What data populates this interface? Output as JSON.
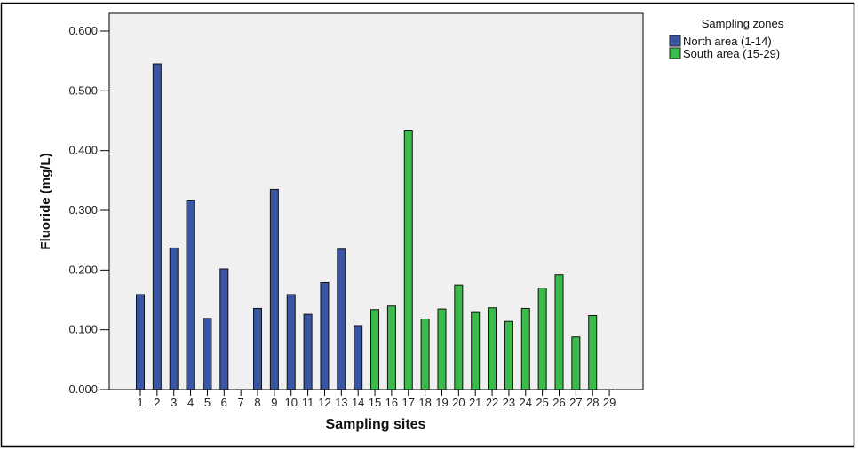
{
  "chart_data": {
    "type": "bar",
    "xlabel": "Sampling sites",
    "ylabel": "Fluoride (mg/L)",
    "ylim": [
      0,
      0.6
    ],
    "yticks": [
      "0.000",
      "0.100",
      "0.200",
      "0.300",
      "0.400",
      "0.500",
      "0.600"
    ],
    "grid": false,
    "legend": {
      "title": "Sampling zones",
      "placement": "right"
    },
    "categories": [
      "1",
      "2",
      "3",
      "4",
      "5",
      "6",
      "7",
      "8",
      "9",
      "10",
      "11",
      "12",
      "13",
      "14",
      "15",
      "16",
      "17",
      "18",
      "19",
      "20",
      "21",
      "22",
      "23",
      "24",
      "25",
      "26",
      "27",
      "28",
      "29"
    ],
    "series": [
      {
        "name": "North area (1-14)",
        "color": "#3a55a4",
        "values": [
          0.159,
          0.545,
          0.237,
          0.317,
          0.119,
          0.202,
          0.0,
          0.136,
          0.335,
          0.159,
          0.126,
          0.179,
          0.235,
          0.107,
          null,
          null,
          null,
          null,
          null,
          null,
          null,
          null,
          null,
          null,
          null,
          null,
          null,
          null,
          null
        ]
      },
      {
        "name": "South area (15-29)",
        "color": "#3bbb4a",
        "values": [
          null,
          null,
          null,
          null,
          null,
          null,
          null,
          null,
          null,
          null,
          null,
          null,
          null,
          null,
          0.134,
          0.14,
          0.433,
          0.118,
          0.135,
          0.175,
          0.129,
          0.137,
          0.114,
          0.136,
          0.17,
          0.192,
          0.088,
          0.124,
          0.0
        ]
      }
    ],
    "plot_background": "#f0f0f0"
  }
}
